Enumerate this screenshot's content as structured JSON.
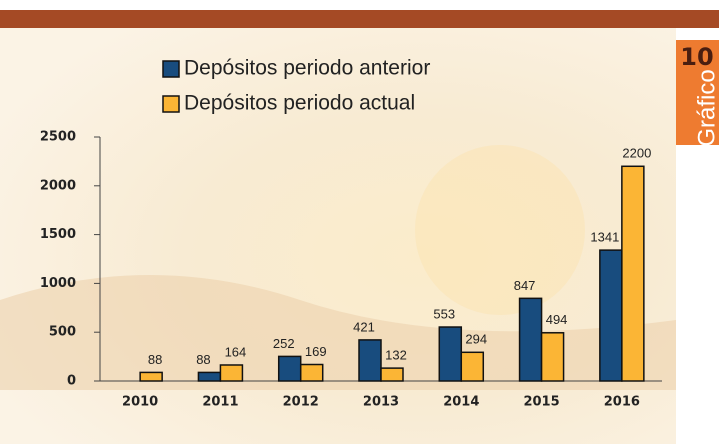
{
  "chart_data": {
    "type": "bar",
    "categories": [
      "2010",
      "2011",
      "2012",
      "2013",
      "2014",
      "2015",
      "2016"
    ],
    "series": [
      {
        "name": "Depósitos periodo anterior",
        "color": "#184c7e",
        "values": [
          null,
          88,
          252,
          421,
          553,
          847,
          1341
        ]
      },
      {
        "name": "Depósitos periodo actual",
        "color": "#fbb535",
        "values": [
          88,
          164,
          169,
          132,
          294,
          494,
          2200
        ]
      }
    ],
    "ylim": [
      0,
      2500
    ],
    "yticks": [
      0,
      500,
      1000,
      1500,
      2000,
      2500
    ],
    "grid": false,
    "legend": "top-left"
  },
  "badge": {
    "number": "10",
    "label": "Gráfico"
  }
}
